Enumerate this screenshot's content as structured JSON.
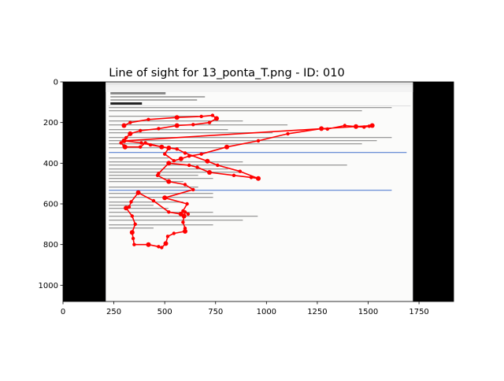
{
  "chart_data": {
    "type": "scatter",
    "title": "Line of sight for 13_ponta_T.png - ID: 010",
    "xlabel": "",
    "ylabel": "",
    "xlim": [
      0,
      1920
    ],
    "ylim": [
      1080,
      0
    ],
    "y_inverted": true,
    "grid": false,
    "x_ticks": [
      0,
      250,
      500,
      750,
      1000,
      1250,
      1500,
      1750
    ],
    "y_ticks": [
      0,
      200,
      400,
      600,
      800,
      1000
    ],
    "background_image": {
      "content": "email client screenshot",
      "extent_x": [
        210,
        1720
      ],
      "extent_y": [
        0,
        1080
      ],
      "letterbox_color": "#000000"
    },
    "series": [
      {
        "color": "#ff0000",
        "points": [
          [
            1520,
            215
          ],
          [
            1505,
            218
          ],
          [
            1480,
            222
          ],
          [
            1440,
            220
          ],
          [
            1385,
            215
          ],
          [
            1300,
            232
          ],
          [
            1270,
            230
          ],
          [
            1105,
            255
          ],
          [
            960,
            290
          ],
          [
            805,
            320
          ],
          [
            680,
            355
          ],
          [
            620,
            365
          ],
          [
            580,
            378
          ],
          [
            545,
            388
          ],
          [
            500,
            355
          ],
          [
            520,
            325
          ],
          [
            430,
            310
          ],
          [
            385,
            300
          ],
          [
            300,
            290
          ],
          [
            285,
            300
          ],
          [
            300,
            315
          ],
          [
            305,
            320
          ],
          [
            380,
            320
          ],
          [
            405,
            300
          ],
          [
            485,
            320
          ],
          [
            560,
            330
          ],
          [
            600,
            350
          ],
          [
            710,
            390
          ],
          [
            760,
            410
          ],
          [
            870,
            440
          ],
          [
            960,
            475
          ],
          [
            925,
            470
          ],
          [
            840,
            460
          ],
          [
            720,
            445
          ],
          [
            660,
            420
          ],
          [
            620,
            410
          ],
          [
            520,
            400
          ],
          [
            470,
            450
          ],
          [
            465,
            460
          ],
          [
            520,
            490
          ],
          [
            600,
            505
          ],
          [
            640,
            530
          ],
          [
            500,
            570
          ],
          [
            610,
            600
          ],
          [
            590,
            635
          ],
          [
            580,
            650
          ],
          [
            520,
            640
          ],
          [
            445,
            585
          ],
          [
            370,
            545
          ],
          [
            335,
            590
          ],
          [
            325,
            615
          ],
          [
            310,
            620
          ],
          [
            340,
            660
          ],
          [
            355,
            700
          ],
          [
            340,
            740
          ],
          [
            345,
            770
          ],
          [
            350,
            800
          ],
          [
            420,
            800
          ],
          [
            470,
            810
          ],
          [
            485,
            815
          ],
          [
            505,
            795
          ],
          [
            515,
            760
          ],
          [
            545,
            745
          ],
          [
            600,
            735
          ],
          [
            600,
            720
          ],
          [
            590,
            690
          ],
          [
            595,
            660
          ],
          [
            600,
            640
          ],
          [
            615,
            650
          ]
        ],
        "tail": [
          [
            300,
            215
          ],
          [
            330,
            200
          ],
          [
            420,
            185
          ],
          [
            560,
            175
          ],
          [
            680,
            170
          ],
          [
            735,
            165
          ],
          [
            755,
            180
          ],
          [
            720,
            200
          ],
          [
            640,
            210
          ],
          [
            560,
            215
          ],
          [
            470,
            230
          ],
          [
            380,
            240
          ],
          [
            330,
            255
          ],
          [
            310,
            275
          ],
          [
            300,
            290
          ]
        ]
      }
    ]
  }
}
